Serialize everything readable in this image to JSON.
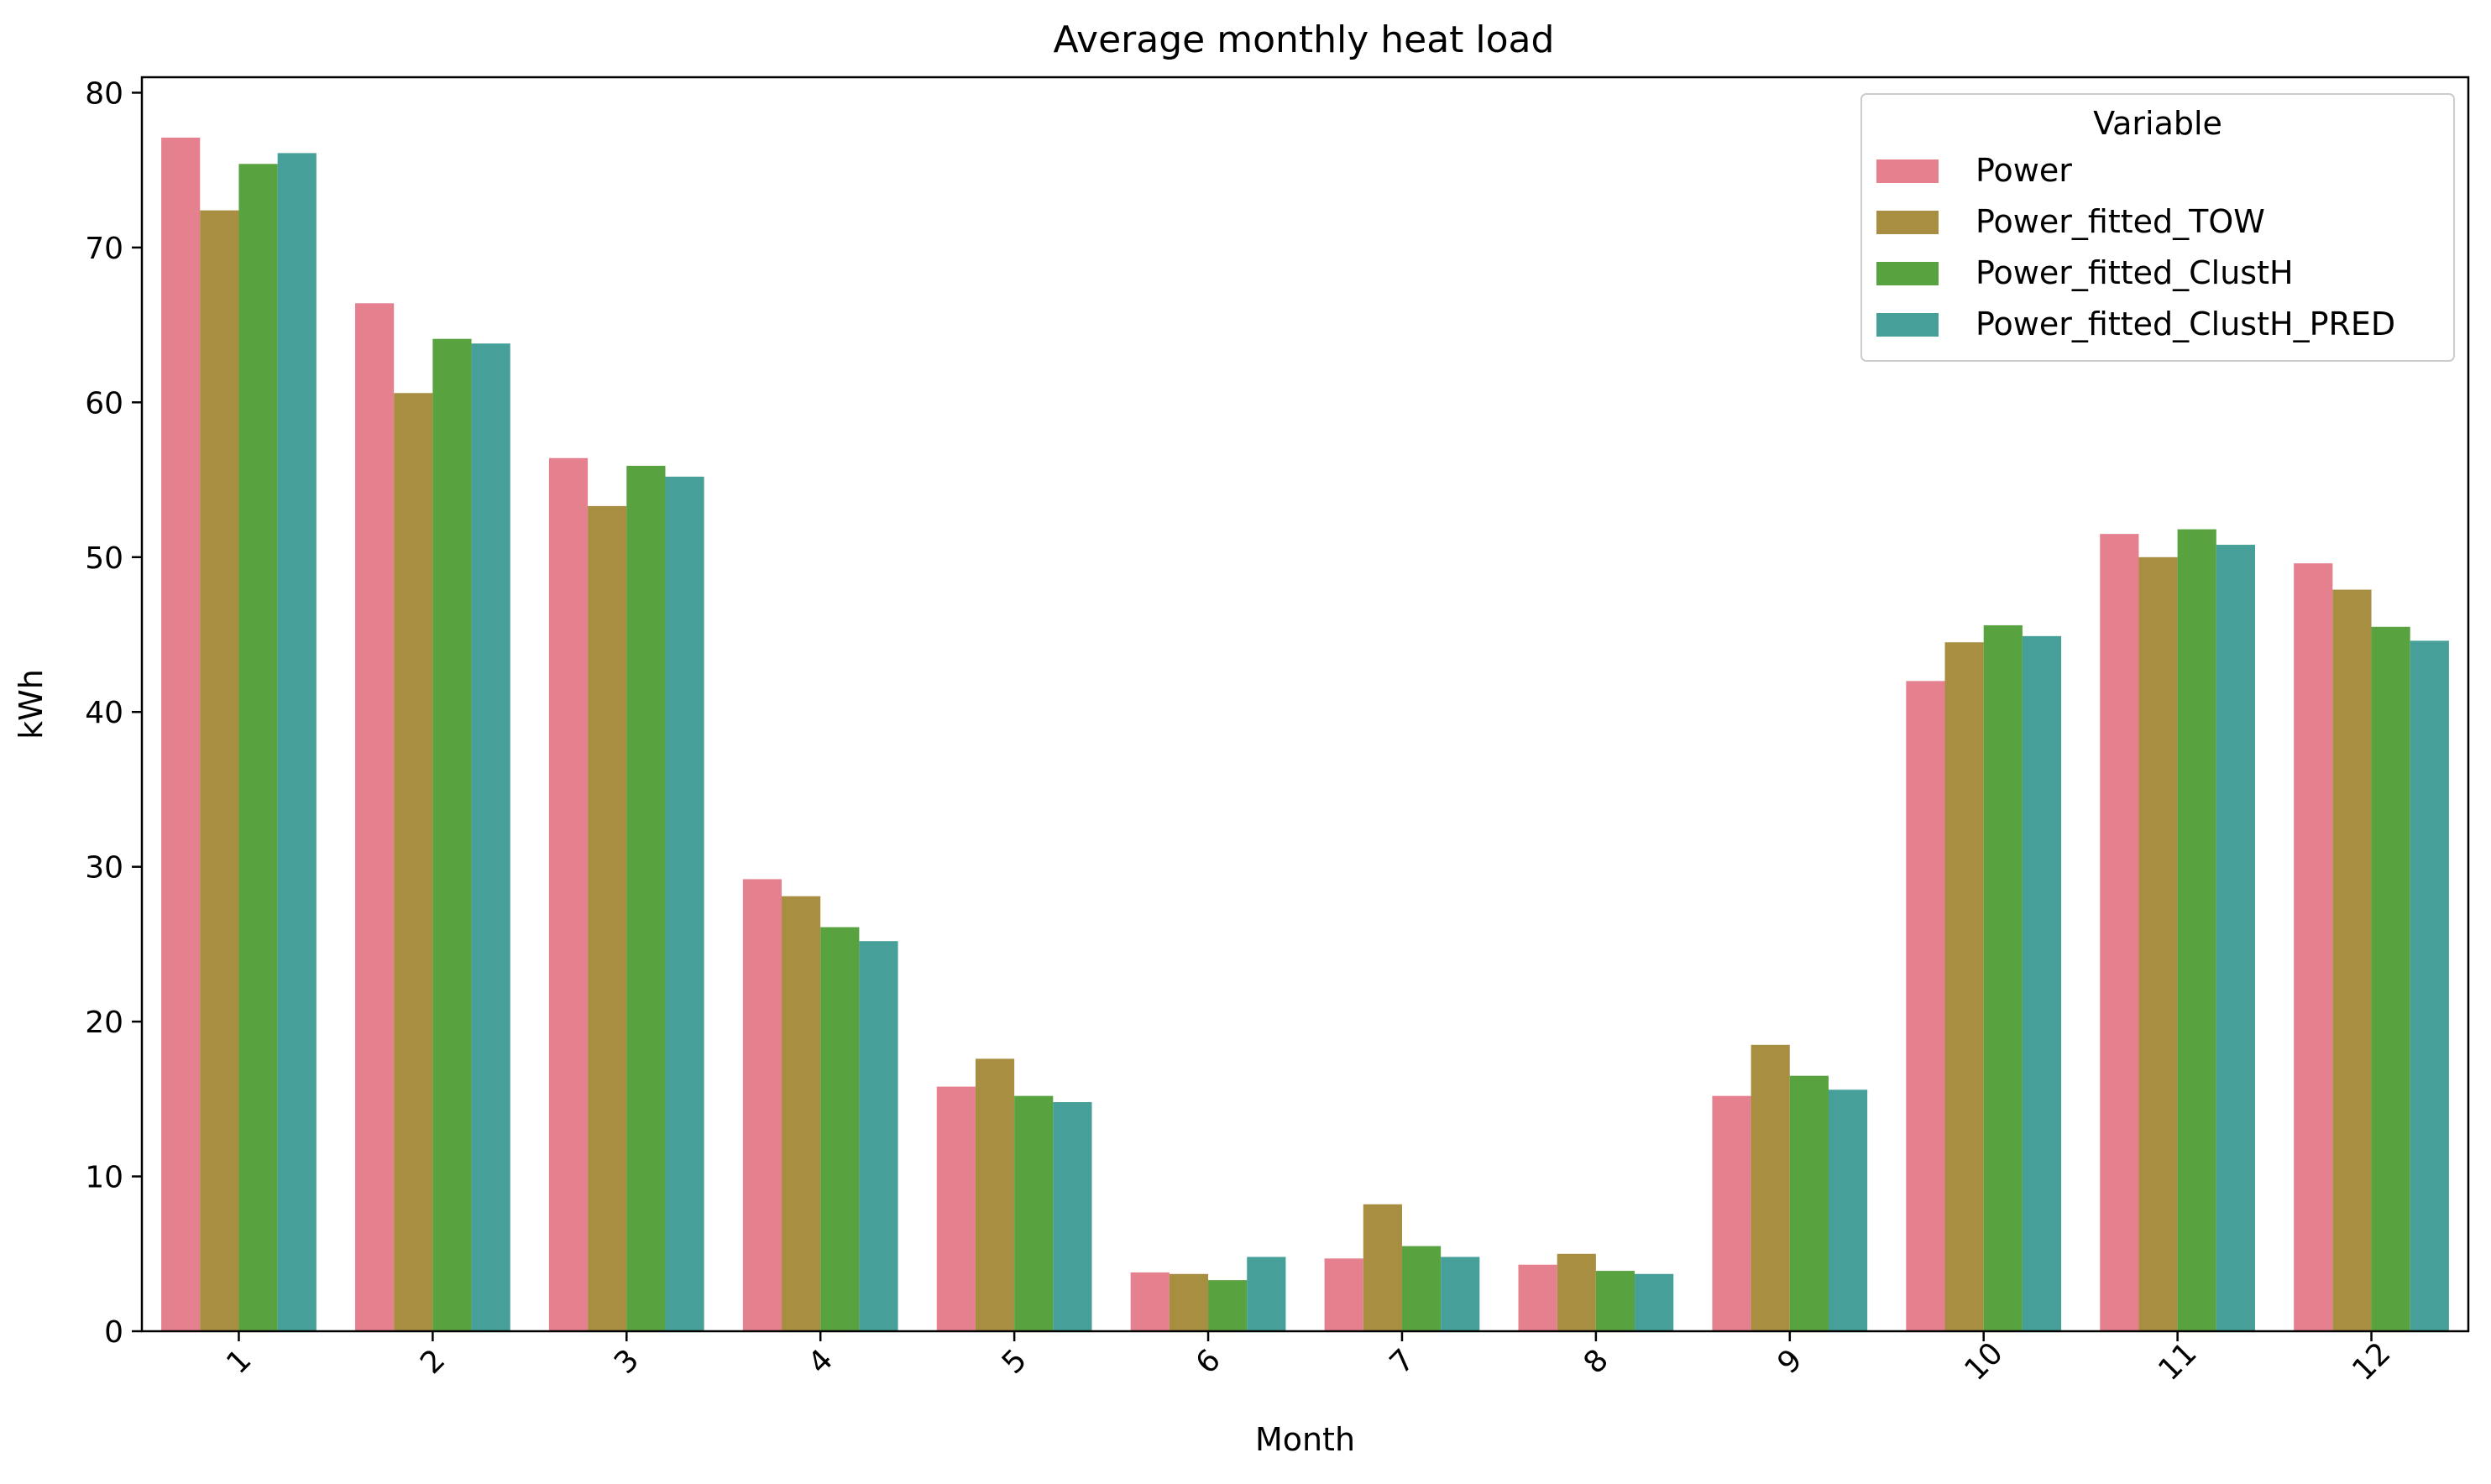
{
  "chart_data": {
    "type": "bar",
    "title": "Average monthly heat load",
    "xlabel": "Month",
    "ylabel": "kWh",
    "ylim": [
      0,
      81
    ],
    "yticks": [
      0,
      10,
      20,
      30,
      40,
      50,
      60,
      70,
      80
    ],
    "categories": [
      "1",
      "2",
      "3",
      "4",
      "5",
      "6",
      "7",
      "8",
      "9",
      "10",
      "11",
      "12"
    ],
    "legend_title": "Variable",
    "legend_position": "top-right",
    "grid": false,
    "series": [
      {
        "name": "Power",
        "color": "#e5808f",
        "values": [
          77.1,
          66.4,
          56.4,
          29.2,
          15.8,
          3.8,
          4.7,
          4.3,
          15.2,
          42.0,
          51.5,
          49.6
        ]
      },
      {
        "name": "Power_fitted_TOW",
        "color": "#a88e41",
        "values": [
          72.4,
          60.6,
          53.3,
          28.1,
          17.6,
          3.7,
          8.2,
          5.0,
          18.5,
          44.5,
          50.0,
          47.9
        ]
      },
      {
        "name": "Power_fitted_ClustH",
        "color": "#58a240",
        "values": [
          75.4,
          64.1,
          55.9,
          26.1,
          15.2,
          3.3,
          5.5,
          3.9,
          16.5,
          45.6,
          51.8,
          45.5
        ]
      },
      {
        "name": "Power_fitted_ClustH_PRED",
        "color": "#46a099",
        "values": [
          76.1,
          63.8,
          55.2,
          25.2,
          14.8,
          4.8,
          4.8,
          3.7,
          15.6,
          44.9,
          50.8,
          44.6
        ]
      }
    ]
  }
}
